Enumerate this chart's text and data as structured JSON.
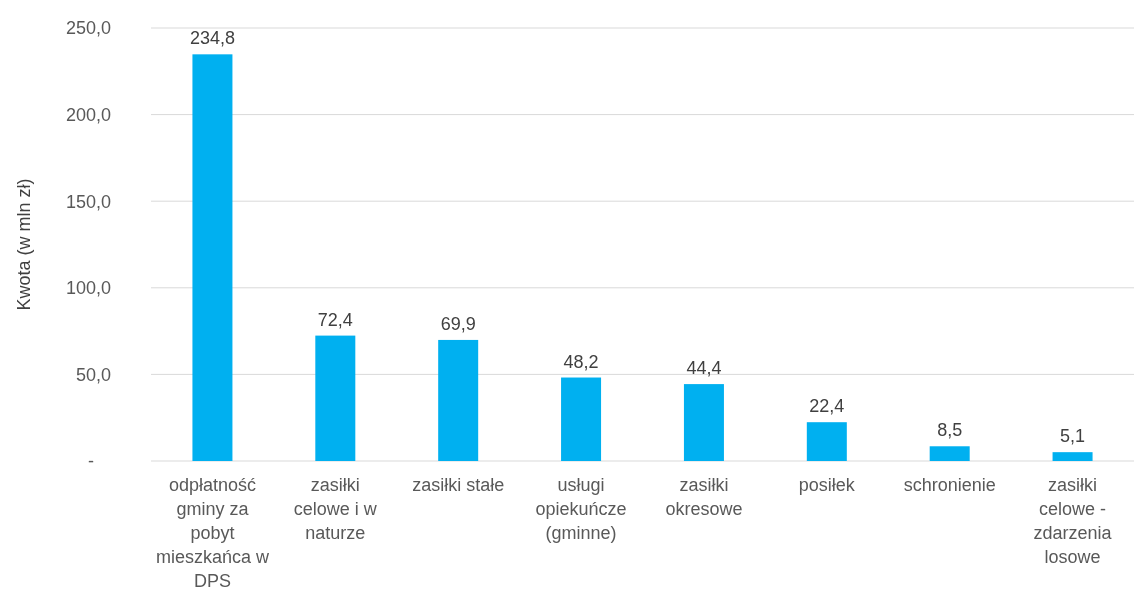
{
  "chart_data": {
    "type": "bar",
    "ylabel": "Kwota (w mln zł)",
    "categories": [
      "odpłatność gminy za pobyt mieszkańca w DPS",
      "zasiłki celowe i w naturze",
      "zasiłki stałe",
      "usługi opiekuńcze (gminne)",
      "zasiłki okresowe",
      "posiłek",
      "schronienie",
      "zasiłki celowe - zdarzenia losowe"
    ],
    "values": [
      234.8,
      72.4,
      69.9,
      48.2,
      44.4,
      22.4,
      8.5,
      5.1
    ],
    "value_labels": [
      "234,8",
      "72,4",
      "69,9",
      "48,2",
      "44,4",
      "22,4",
      "8,5",
      "5,1"
    ],
    "color": "#00b0f0",
    "ylim": [
      0,
      250
    ],
    "yticks": [
      {
        "value": 0,
        "label": "-"
      },
      {
        "value": 50,
        "label": "50,0"
      },
      {
        "value": 100,
        "label": "100,0"
      },
      {
        "value": 150,
        "label": "150,0"
      },
      {
        "value": 200,
        "label": "200,0"
      },
      {
        "value": 250,
        "label": "250,0"
      }
    ],
    "grid": "y"
  }
}
